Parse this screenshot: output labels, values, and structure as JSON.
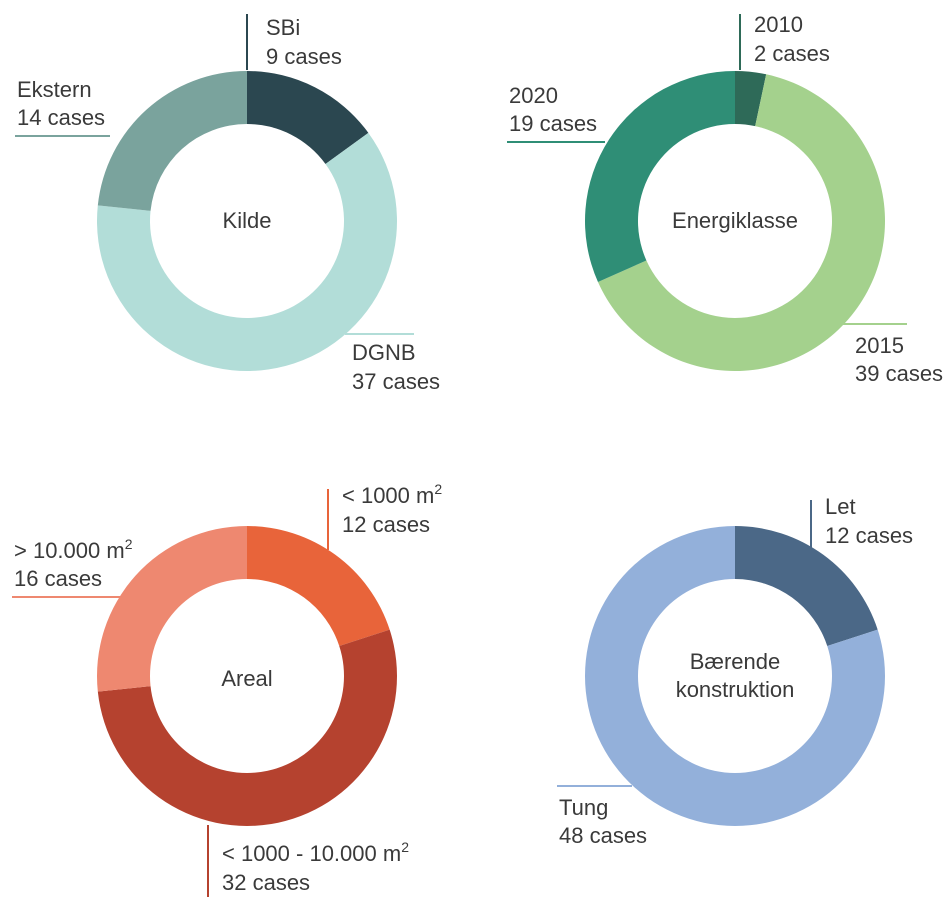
{
  "chart_data": [
    {
      "type": "pie",
      "title": "Kilde",
      "slices": [
        {
          "label": "SBi",
          "value": 9,
          "value_text": "9 cases",
          "color": "#2b4750"
        },
        {
          "label": "DGNB",
          "value": 37,
          "value_text": "37 cases",
          "color": "#b2ddd8"
        },
        {
          "label": "Ekstern",
          "value": 14,
          "value_text": "14 cases",
          "color": "#7aa39d"
        }
      ]
    },
    {
      "type": "pie",
      "title": "Energiklasse",
      "slices": [
        {
          "label": "2010",
          "value": 2,
          "value_text": "2 cases",
          "color": "#2e6a58"
        },
        {
          "label": "2015",
          "value": 39,
          "value_text": "39 cases",
          "color": "#a4d18d"
        },
        {
          "label": "2020",
          "value": 19,
          "value_text": "19 cases",
          "color": "#2f8e76"
        }
      ]
    },
    {
      "type": "pie",
      "title": "Areal",
      "slices": [
        {
          "label": "< 1000 m",
          "sup": "2",
          "value": 12,
          "value_text": "12 cases",
          "color": "#e8643a"
        },
        {
          "label": "< 1000 - 10.000 m",
          "sup": "2",
          "value": 32,
          "value_text": "32 cases",
          "color": "#b5422f"
        },
        {
          "label": "> 10.000 m",
          "sup": "2",
          "value": 16,
          "value_text": "16 cases",
          "color": "#ee8870"
        }
      ]
    },
    {
      "type": "pie",
      "title_lines": [
        "Bærende",
        "konstruktion"
      ],
      "slices": [
        {
          "label": "Let",
          "value": 12,
          "value_text": "12 cases",
          "color": "#4b6887"
        },
        {
          "label": "Tung",
          "value": 48,
          "value_text": "48 cases",
          "color": "#93b0da"
        }
      ]
    }
  ]
}
